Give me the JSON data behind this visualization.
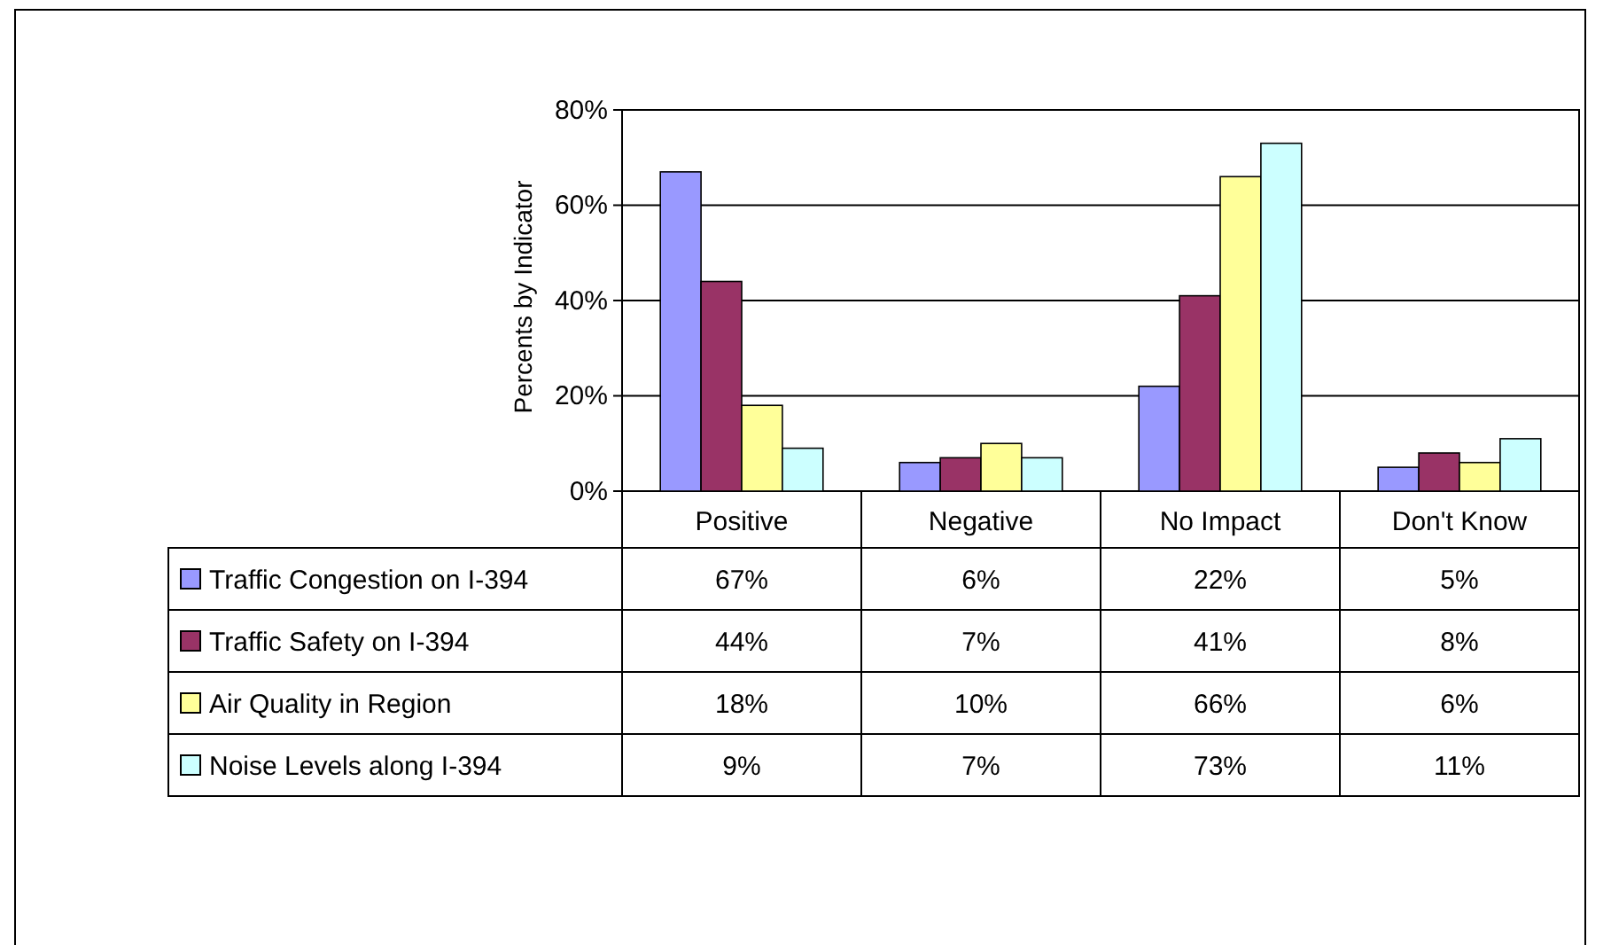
{
  "chart_data": {
    "type": "bar",
    "ylabel": "Percents by Indicator",
    "categories": [
      "Positive",
      "Negative",
      "No Impact",
      "Don't Know"
    ],
    "series": [
      {
        "name": "Traffic Congestion on I-394",
        "color": "#9999ff",
        "values": [
          67,
          6,
          22,
          5
        ],
        "value_labels": [
          "67%",
          "6%",
          "22%",
          "5%"
        ]
      },
      {
        "name": "Traffic Safety on I-394",
        "color": "#993366",
        "values": [
          44,
          7,
          41,
          8
        ],
        "value_labels": [
          "44%",
          "7%",
          "41%",
          "8%"
        ]
      },
      {
        "name": "Air Quality in Region",
        "color": "#ffff99",
        "values": [
          18,
          10,
          66,
          6
        ],
        "value_labels": [
          "18%",
          "10%",
          "66%",
          "6%"
        ]
      },
      {
        "name": "Noise Levels along I-394",
        "color": "#ccffff",
        "values": [
          9,
          7,
          73,
          11
        ],
        "value_labels": [
          "9%",
          "7%",
          "73%",
          "11%"
        ]
      }
    ],
    "ylim": [
      0,
      80
    ],
    "yticks": [
      {
        "value": 0,
        "label": "0%"
      },
      {
        "value": 20,
        "label": "20%"
      },
      {
        "value": 40,
        "label": "40%"
      },
      {
        "value": 60,
        "label": "60%"
      },
      {
        "value": 80,
        "label": "80%"
      }
    ],
    "grid": "y",
    "legend": "bottom"
  }
}
